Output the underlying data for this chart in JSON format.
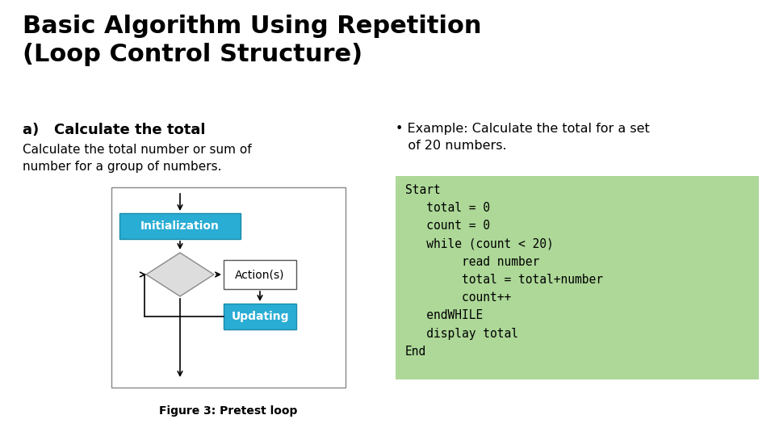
{
  "title_line1": "Basic Algorithm Using Repetition",
  "title_line2": "(Loop Control Structure)",
  "subtitle": "a)   Calculate the total",
  "body_text": "Calculate the total number or sum of\nnumber for a group of numbers.",
  "bullet_text": "• Example: Calculate the total for a set\n   of 20 numbers.",
  "code_text": "Start\n   total = 0\n   count = 0\n   while (count < 20)\n        read number\n        total = total+number\n        count++\n   endWHILE\n   display total\nEnd",
  "figure_caption": "Figure 3: Pretest loop",
  "bg_color": "#ffffff",
  "title_color": "#000000",
  "subtitle_color": "#000000",
  "body_color": "#000000",
  "code_bg": "#add898",
  "code_color": "#000000",
  "init_box_color": "#2aadd4",
  "update_box_color": "#2aadd4",
  "action_box_color": "#ffffff",
  "flowchart_border": "#aaaaaa",
  "diamond_color": "#cccccc"
}
